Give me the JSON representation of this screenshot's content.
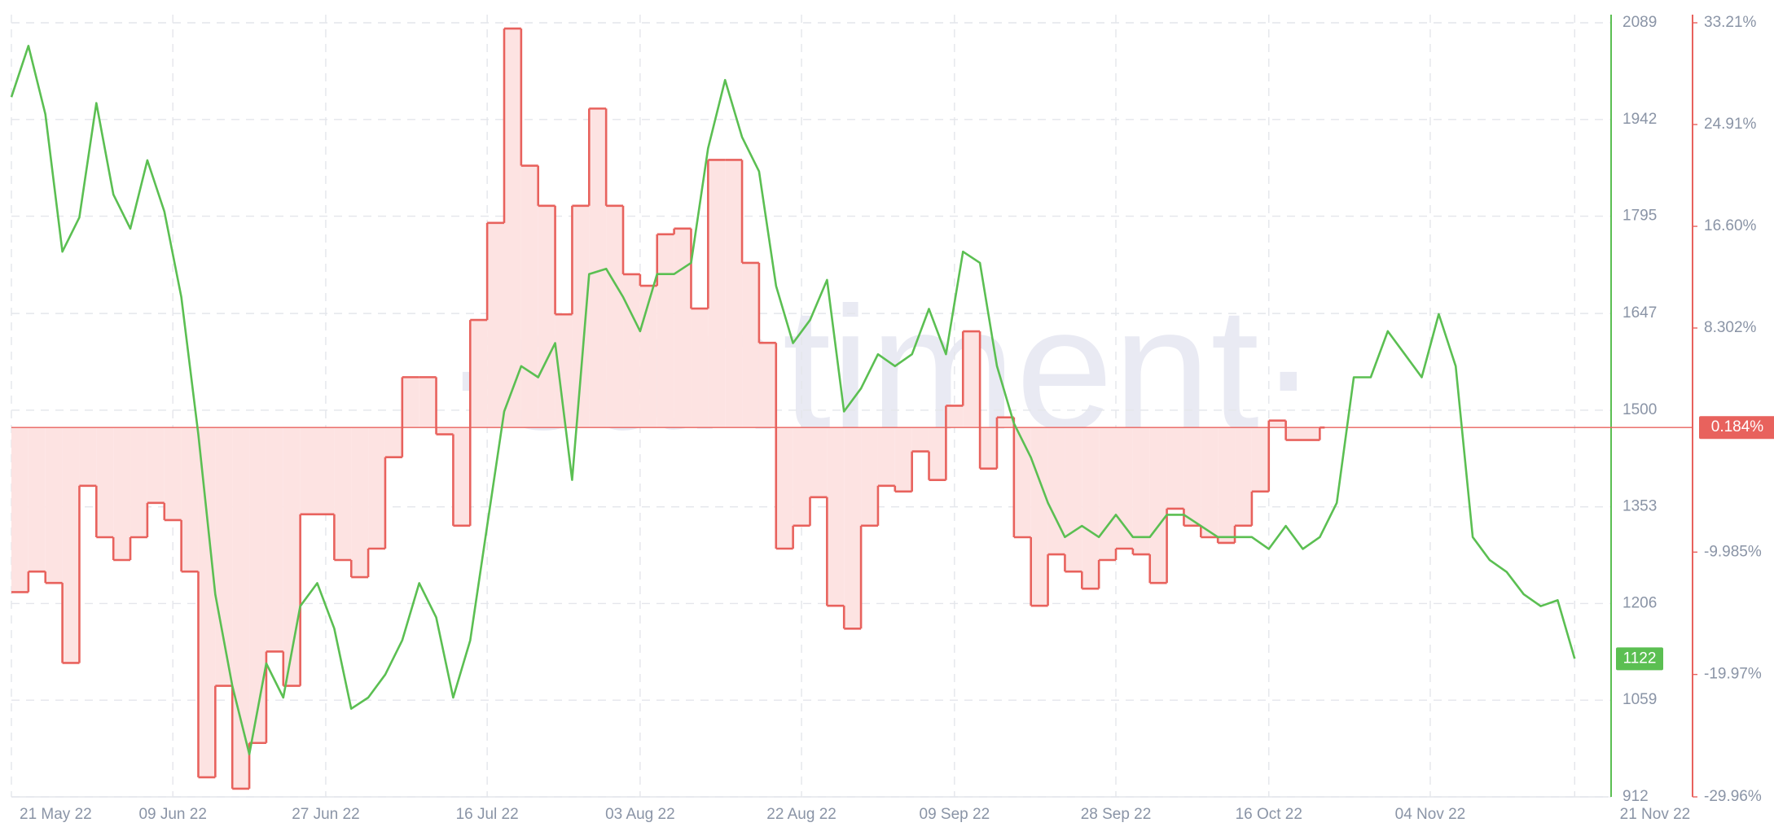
{
  "chart_data": {
    "type": "line",
    "watermark": "·santiment·",
    "x": [
      "2022-05-21",
      "2022-05-23",
      "2022-05-25",
      "2022-05-27",
      "2022-05-29",
      "2022-05-31",
      "2022-06-02",
      "2022-06-04",
      "2022-06-06",
      "2022-06-08",
      "2022-06-10",
      "2022-06-12",
      "2022-06-14",
      "2022-06-16",
      "2022-06-18",
      "2022-06-20",
      "2022-06-22",
      "2022-06-24",
      "2022-06-26",
      "2022-06-28",
      "2022-06-30",
      "2022-07-02",
      "2022-07-04",
      "2022-07-06",
      "2022-07-08",
      "2022-07-10",
      "2022-07-12",
      "2022-07-14",
      "2022-07-16",
      "2022-07-18",
      "2022-07-20",
      "2022-07-22",
      "2022-07-24",
      "2022-07-26",
      "2022-07-28",
      "2022-07-30",
      "2022-08-01",
      "2022-08-03",
      "2022-08-05",
      "2022-08-07",
      "2022-08-09",
      "2022-08-11",
      "2022-08-13",
      "2022-08-15",
      "2022-08-17",
      "2022-08-19",
      "2022-08-21",
      "2022-08-23",
      "2022-08-25",
      "2022-08-27",
      "2022-08-29",
      "2022-08-31",
      "2022-09-02",
      "2022-09-04",
      "2022-09-06",
      "2022-09-08",
      "2022-09-10",
      "2022-09-12",
      "2022-09-14",
      "2022-09-16",
      "2022-09-18",
      "2022-09-20",
      "2022-09-22",
      "2022-09-24",
      "2022-09-26",
      "2022-09-28",
      "2022-09-30",
      "2022-10-02",
      "2022-10-04",
      "2022-10-06",
      "2022-10-08",
      "2022-10-10",
      "2022-10-12",
      "2022-10-14",
      "2022-10-16",
      "2022-10-18",
      "2022-10-20",
      "2022-10-22",
      "2022-10-24",
      "2022-10-26",
      "2022-10-28",
      "2022-10-30",
      "2022-11-01",
      "2022-11-03",
      "2022-11-05",
      "2022-11-07",
      "2022-11-09",
      "2022-11-11",
      "2022-11-13",
      "2022-11-15",
      "2022-11-17",
      "2022-11-19",
      "2022-11-21"
    ],
    "xlim": [
      "2022-05-21",
      "2022-11-25"
    ],
    "xticks": [
      {
        "value": "2022-05-21",
        "label": "21 May 22"
      },
      {
        "value": "2022-06-09",
        "label": "09 Jun 22"
      },
      {
        "value": "2022-06-27",
        "label": "27 Jun 22"
      },
      {
        "value": "2022-07-16",
        "label": "16 Jul 22"
      },
      {
        "value": "2022-08-03",
        "label": "03 Aug 22"
      },
      {
        "value": "2022-08-22",
        "label": "22 Aug 22"
      },
      {
        "value": "2022-09-09",
        "label": "09 Sep 22"
      },
      {
        "value": "2022-09-28",
        "label": "28 Sep 22"
      },
      {
        "value": "2022-10-16",
        "label": "16 Oct 22"
      },
      {
        "value": "2022-11-04",
        "label": "04 Nov 22"
      },
      {
        "value": "2022-11-21",
        "label": "21 Nov 22"
      }
    ],
    "ylim": [
      912,
      2089
    ],
    "yticks": [
      912,
      1059,
      1206,
      1353,
      1500,
      1647,
      1795,
      1942,
      2089
    ],
    "y2lim": [
      -29.96,
      33.21
    ],
    "y2ticks": [
      {
        "value": -29.96,
        "label": "-29.96%"
      },
      {
        "value": -19.97,
        "label": "-19.97%"
      },
      {
        "value": -9.985,
        "label": "-9.985%"
      },
      {
        "value": 8.302,
        "label": "8.302%"
      },
      {
        "value": 16.6,
        "label": "16.60%"
      },
      {
        "value": 24.91,
        "label": "24.91%"
      },
      {
        "value": 33.21,
        "label": "33.21%"
      }
    ],
    "grid": true,
    "series": [
      {
        "color": "#5bbf52",
        "values": [
          1976,
          2054,
          1950,
          1741,
          1793,
          1967,
          1828,
          1776,
          1880,
          1802,
          1672,
          1463,
          1220,
          1081,
          977,
          1115,
          1063,
          1202,
          1237,
          1168,
          1046,
          1063,
          1098,
          1150,
          1237,
          1185,
          1063,
          1150,
          1324,
          1498,
          1567,
          1550,
          1602,
          1394,
          1707,
          1715,
          1672,
          1620,
          1707,
          1707,
          1724,
          1898,
          2002,
          1915,
          1863,
          1689,
          1602,
          1637,
          1698,
          1498,
          1533,
          1585,
          1567,
          1585,
          1654,
          1585,
          1741,
          1724,
          1567,
          1480,
          1428,
          1359,
          1307,
          1324,
          1307,
          1341,
          1307,
          1307,
          1341,
          1341,
          1324,
          1307,
          1307,
          1307,
          1289,
          1324,
          1289,
          1307,
          1359,
          1550,
          1550,
          1620,
          1585,
          1550,
          1646,
          1567,
          1307,
          1272,
          1254,
          1220,
          1202,
          1211,
          1122
        ]
      },
      {
        "color": "#e8625d",
        "axis": "y2",
        "step": true,
        "last_label": "0.184%",
        "values": [
          -13.25,
          -11.57,
          -12.5,
          -19.03,
          -4.57,
          -8.77,
          -10.63,
          -8.77,
          -5.97,
          -7.37,
          -11.57,
          -28.36,
          -20.9,
          -29.29,
          -25.56,
          -18.1,
          -20.9,
          -6.9,
          -6.9,
          -10.63,
          -12.03,
          -9.7,
          -2.24,
          4.29,
          4.29,
          -0.37,
          -7.83,
          8.96,
          16.88,
          32.74,
          21.55,
          18.28,
          9.42,
          18.28,
          26.21,
          18.28,
          12.69,
          11.75,
          15.95,
          16.42,
          9.89,
          22.02,
          22.02,
          13.62,
          7.09,
          -9.7,
          -7.83,
          -5.5,
          -14.36,
          -16.23,
          -7.83,
          -4.57,
          -5.04,
          -1.77,
          -4.1,
          1.96,
          8.03,
          -3.17,
          1.01,
          -8.77,
          -14.36,
          -10.17,
          -11.57,
          -12.97,
          -10.63,
          -9.7,
          -10.17,
          -12.5,
          -6.44,
          -7.83,
          -8.77,
          -9.23,
          -7.83,
          -5.04,
          0.75,
          -0.84,
          -0.84,
          0.184,
          null,
          null,
          null,
          null,
          null,
          null,
          null,
          null,
          null,
          null,
          null,
          null,
          null,
          null,
          null
        ]
      }
    ]
  }
}
